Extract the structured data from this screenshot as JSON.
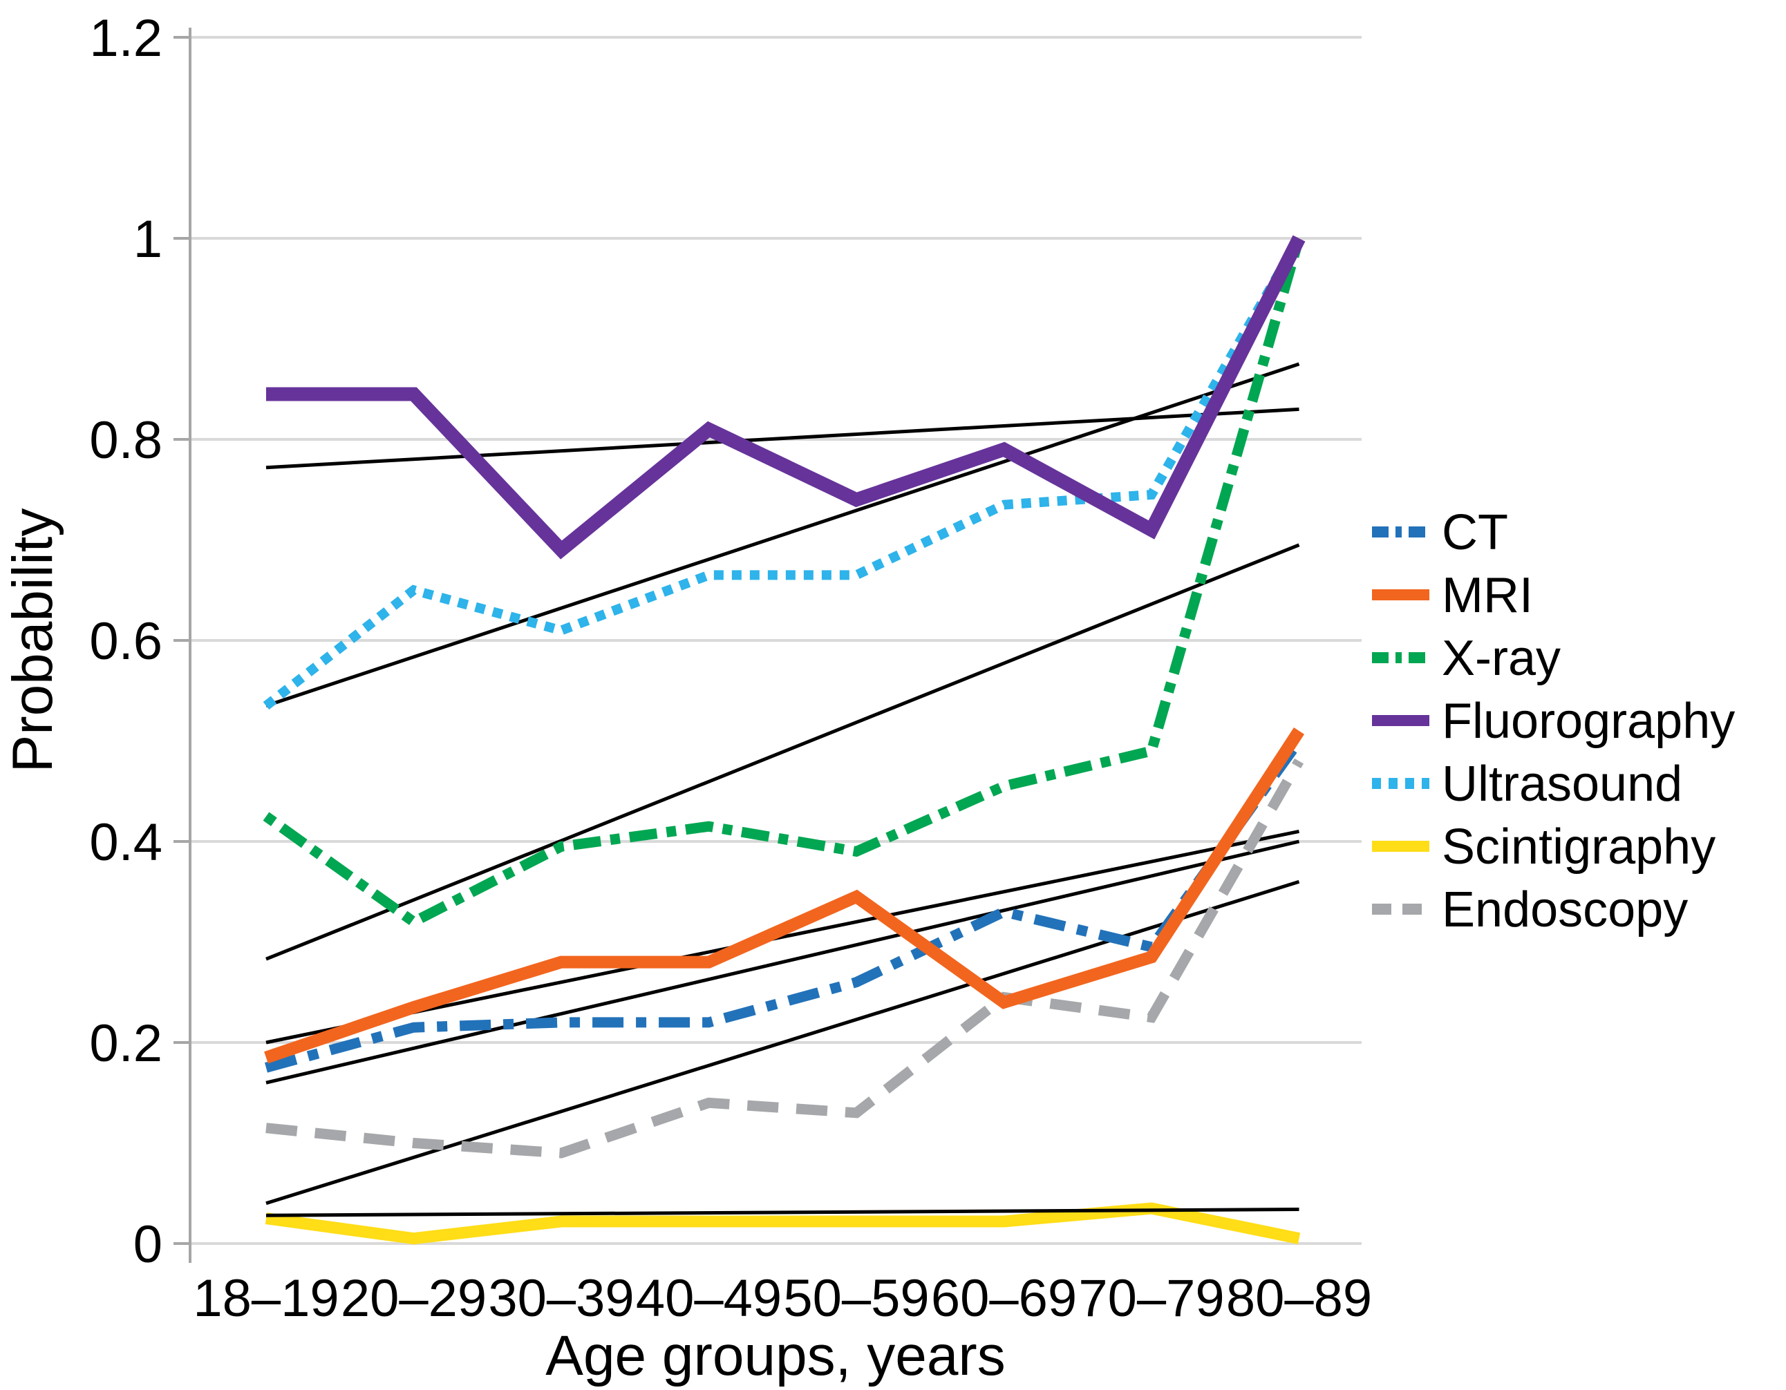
{
  "chart_data": {
    "type": "line",
    "title": "",
    "xlabel": "Age groups, years",
    "ylabel": "Probability",
    "ylim": [
      0,
      1.2
    ],
    "ytick_labels": [
      "0",
      "0.2",
      "0.4",
      "0.6",
      "0.8",
      "1",
      "1.2"
    ],
    "yticks": [
      0,
      0.2,
      0.4,
      0.6,
      0.8,
      1,
      1.2
    ],
    "grid": "horizontal",
    "legend_position": "right",
    "categories": [
      "18–19",
      "20–29",
      "30–39",
      "40–49",
      "50–59",
      "60–69",
      "70–79",
      "80–89"
    ],
    "series": [
      {
        "name": "CT",
        "color": "#2272B9",
        "style": "dashdot",
        "width": 15,
        "values": [
          0.175,
          0.215,
          0.22,
          0.22,
          0.26,
          0.33,
          0.295,
          0.5
        ]
      },
      {
        "name": "MRI",
        "color": "#F2651E",
        "style": "solid",
        "width": 18,
        "values": [
          0.185,
          0.235,
          0.28,
          0.28,
          0.345,
          0.24,
          0.285,
          0.51
        ]
      },
      {
        "name": "X-ray",
        "color": "#00A651",
        "style": "dashdotdot",
        "width": 15,
        "values": [
          0.425,
          0.32,
          0.395,
          0.415,
          0.39,
          0.455,
          0.49,
          1.0
        ]
      },
      {
        "name": "Fluorography",
        "color": "#66339A",
        "style": "solid",
        "width": 20,
        "values": [
          0.845,
          0.845,
          0.69,
          0.81,
          0.74,
          0.79,
          0.71,
          1.0
        ]
      },
      {
        "name": "Ultrasound",
        "color": "#2EB3EA",
        "style": "dotted",
        "width": 14,
        "values": [
          0.535,
          0.65,
          0.61,
          0.665,
          0.665,
          0.735,
          0.745,
          1.0
        ]
      },
      {
        "name": "Scintigraphy",
        "color": "#FFDD17",
        "style": "solid",
        "width": 17,
        "values": [
          0.025,
          0.005,
          0.022,
          0.022,
          0.022,
          0.022,
          0.035,
          0.005
        ]
      },
      {
        "name": "Endoscopy",
        "color": "#A5A7AA",
        "style": "dashed",
        "width": 15,
        "values": [
          0.115,
          0.1,
          0.09,
          0.14,
          0.13,
          0.245,
          0.225,
          0.48
        ]
      }
    ],
    "trend_lines": [
      {
        "series": "CT",
        "start": 0.16,
        "end": 0.4
      },
      {
        "series": "MRI",
        "start": 0.2,
        "end": 0.41
      },
      {
        "series": "X-ray",
        "start": 0.283,
        "end": 0.695
      },
      {
        "series": "Fluorography",
        "start": 0.772,
        "end": 0.83
      },
      {
        "series": "Ultrasound",
        "start": 0.535,
        "end": 0.875
      },
      {
        "series": "Scintigraphy",
        "start": 0.028,
        "end": 0.034
      },
      {
        "series": "Endoscopy",
        "start": 0.04,
        "end": 0.36
      }
    ],
    "trend_color": "#000000",
    "axis_color": "#A6A6A6",
    "grid_color": "#D9D9D9"
  }
}
